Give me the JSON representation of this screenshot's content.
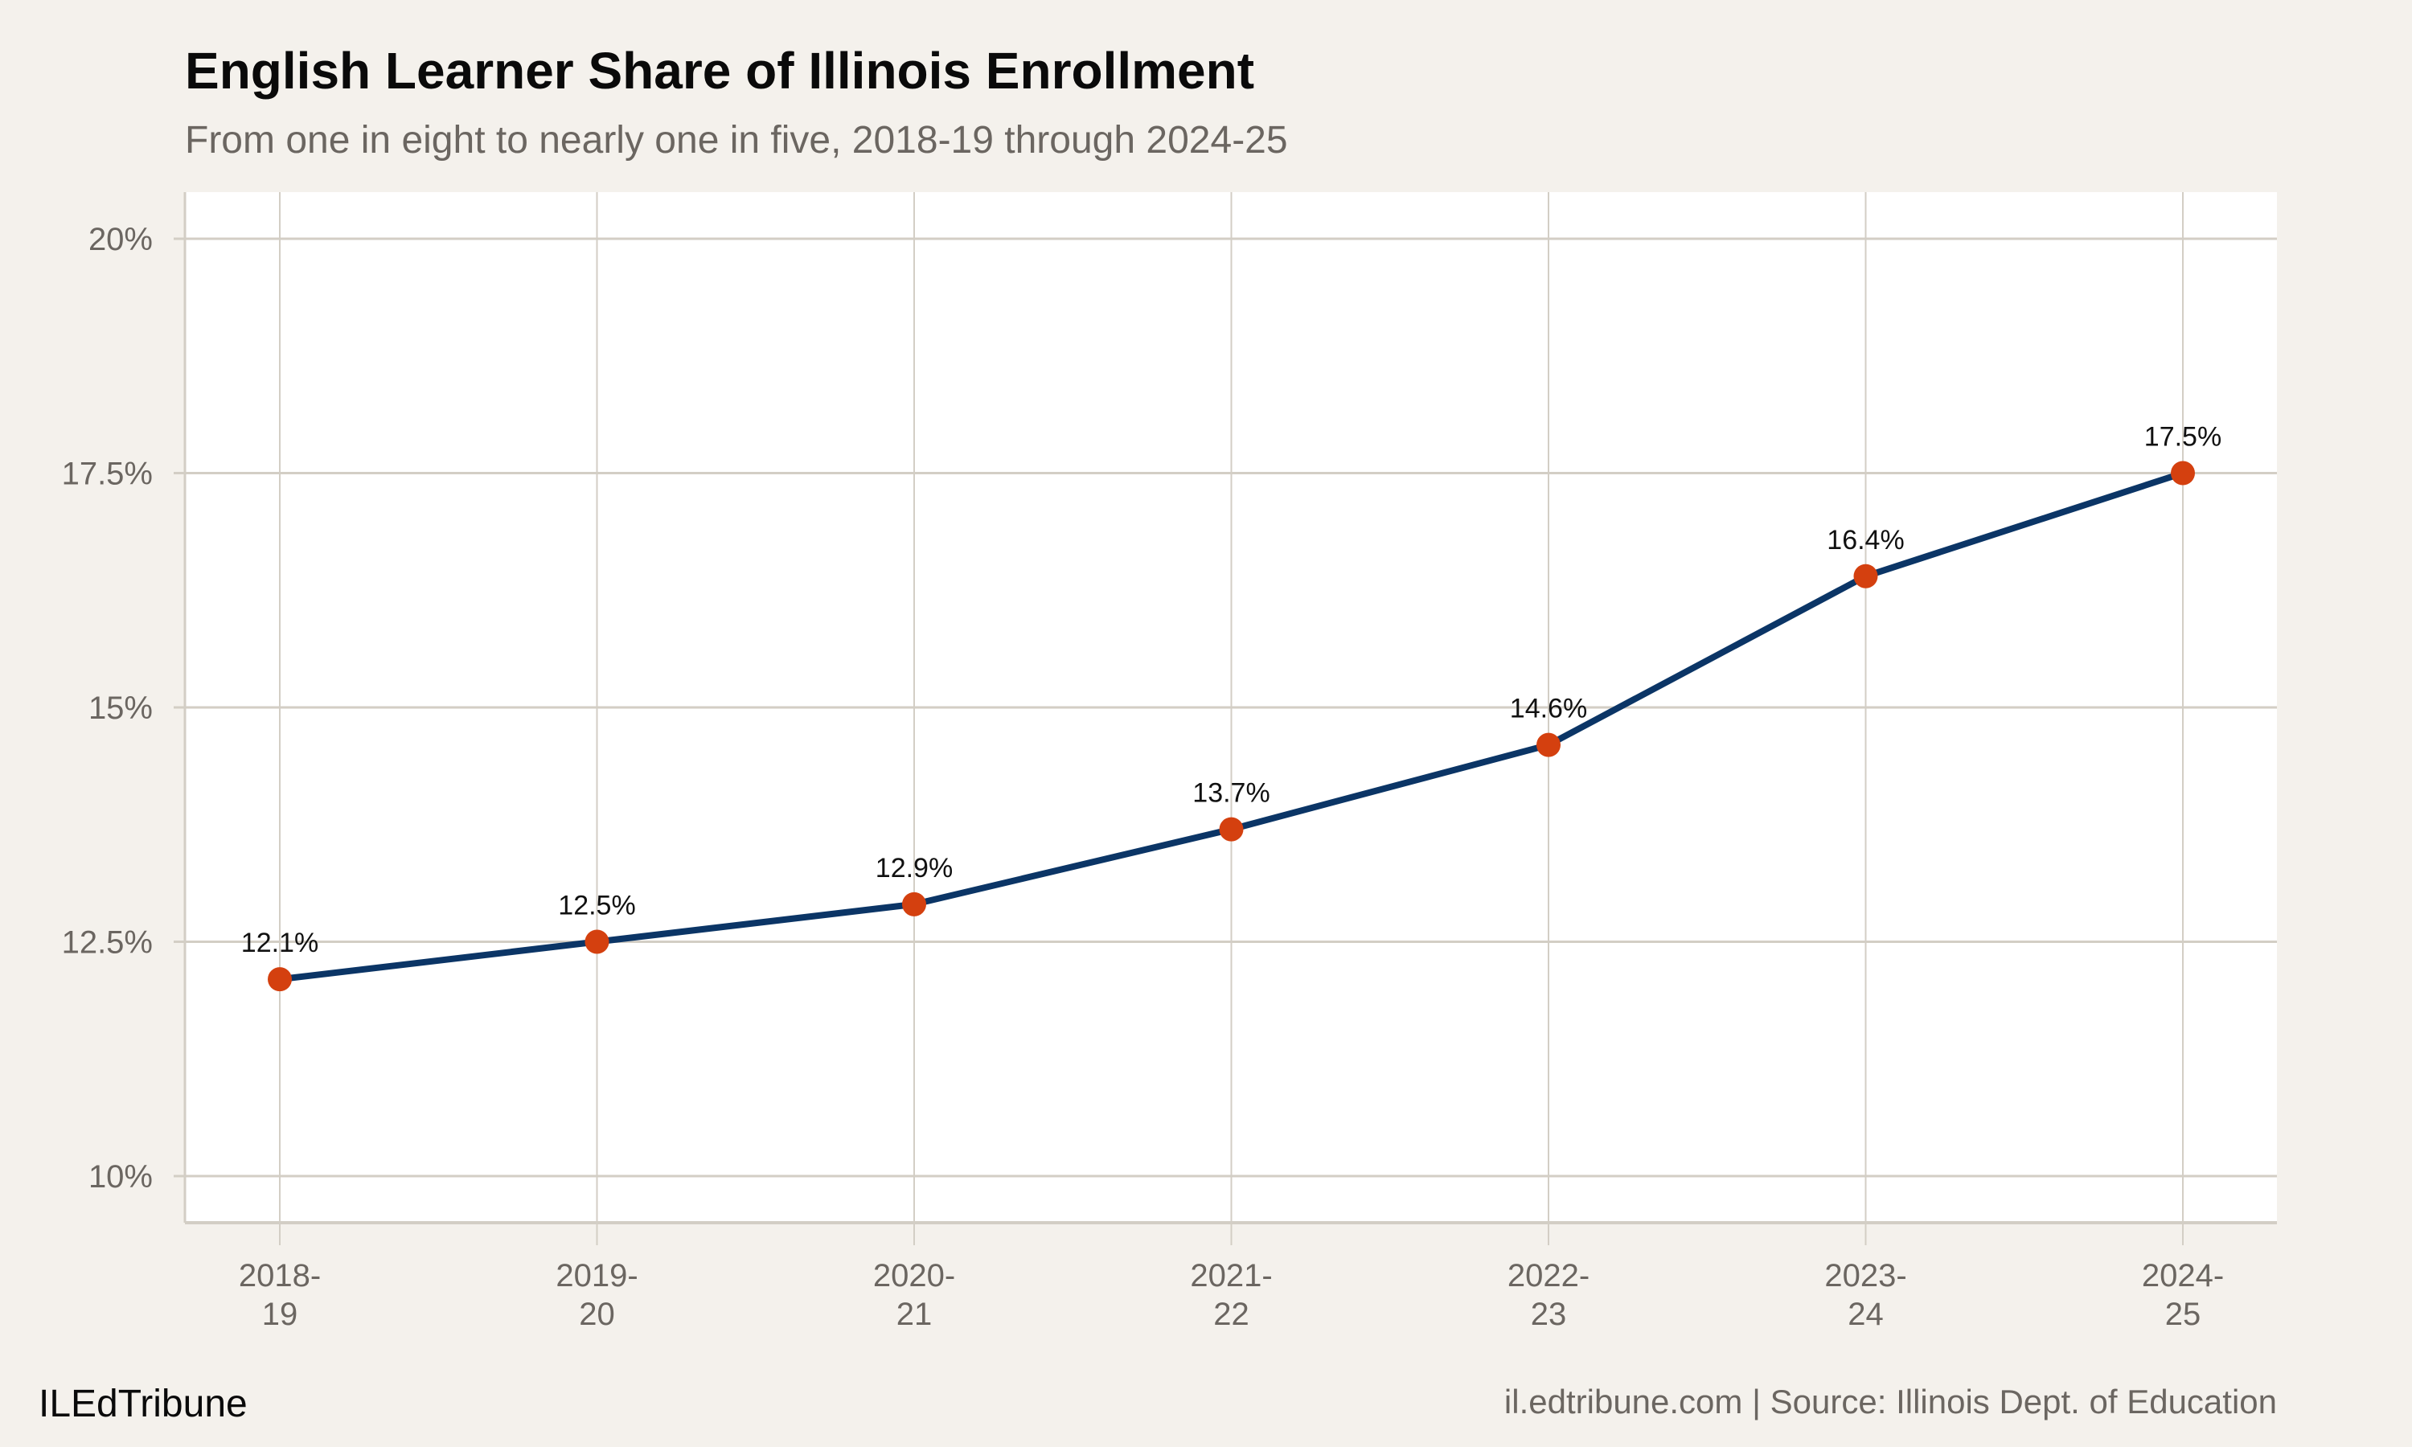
{
  "title": "English Learner Share of Illinois Enrollment",
  "subtitle": "From one in eight to nearly one in five, 2018-19 through 2024-25",
  "footer": {
    "brand": "ILEdTribune",
    "source": "il.edtribune.com | Source: Illinois Dept. of Education"
  },
  "colors": {
    "background": "#f4f1ec",
    "panel": "#ffffff",
    "grid": "#d3cec5",
    "line": "#0b3566",
    "point": "#d4400f"
  },
  "chart_data": {
    "type": "line",
    "title": "English Learner Share of Illinois Enrollment",
    "subtitle": "From one in eight to nearly one in five, 2018-19 through 2024-25",
    "xlabel": "",
    "ylabel": "",
    "categories": [
      [
        "2018-",
        "19"
      ],
      [
        "2019-",
        "20"
      ],
      [
        "2020-",
        "21"
      ],
      [
        "2021-",
        "22"
      ],
      [
        "2022-",
        "23"
      ],
      [
        "2023-",
        "24"
      ],
      [
        "2024-",
        "25"
      ]
    ],
    "values": [
      12.1,
      12.5,
      12.9,
      13.7,
      14.6,
      16.4,
      17.5
    ],
    "data_labels": [
      "12.1%",
      "12.5%",
      "12.9%",
      "13.7%",
      "14.6%",
      "16.4%",
      "17.5%"
    ],
    "ylim": [
      9.5,
      20.5
    ],
    "yticks": [
      10,
      12.5,
      15,
      17.5,
      20
    ],
    "ytick_labels": [
      "10%",
      "12.5%",
      "15%",
      "17.5%",
      "20%"
    ],
    "grid": true,
    "legend": "none"
  }
}
